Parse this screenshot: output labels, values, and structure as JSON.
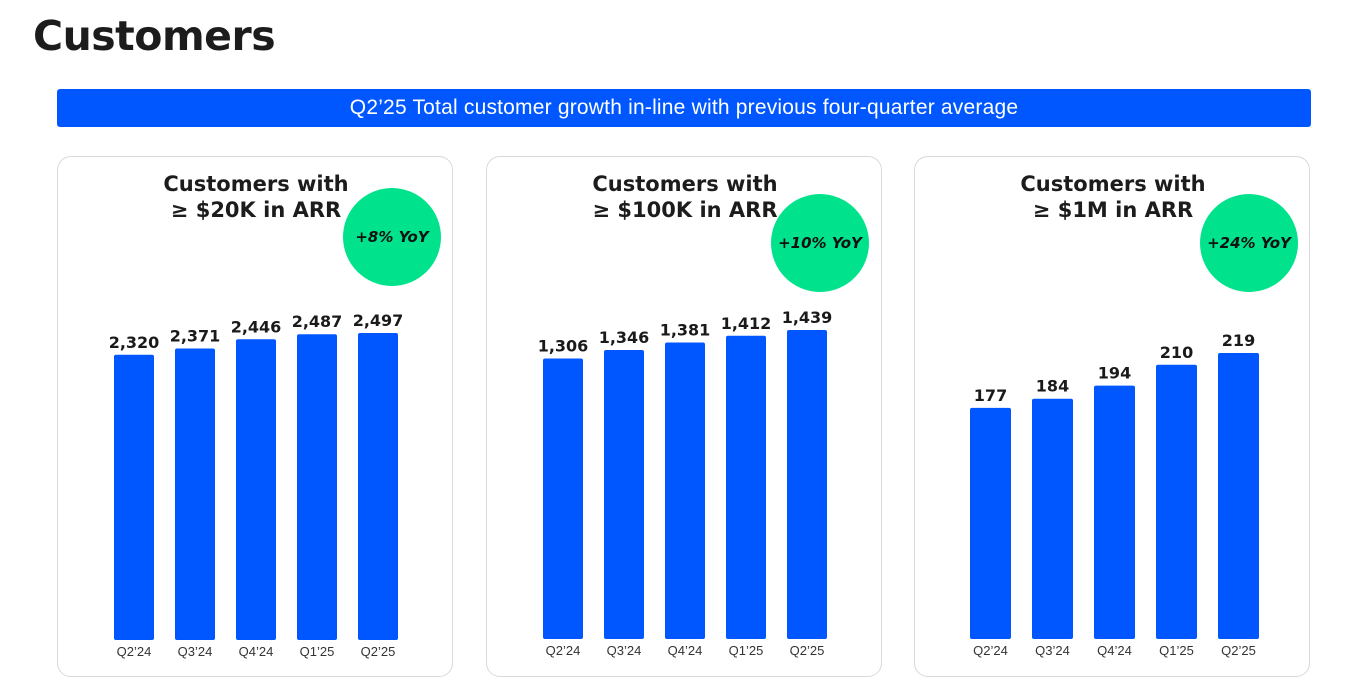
{
  "page": {
    "title": "Customers",
    "banner": "Q2’25 Total customer growth in-line with previous four-quarter average"
  },
  "colors": {
    "bar": "#0057ff",
    "banner": "#0057ff",
    "badge": "#00e38c"
  },
  "chart_data": [
    {
      "type": "bar",
      "title_line1": "Customers with",
      "title_line2": "≥ $20K in ARR",
      "badge": "+8% YoY",
      "categories": [
        "Q2’24",
        "Q3’24",
        "Q4’24",
        "Q1’25",
        "Q2’25"
      ],
      "values": [
        2320,
        2371,
        2446,
        2487,
        2497
      ],
      "value_labels": [
        "2,320",
        "2,371",
        "2,446",
        "2,487",
        "2,497"
      ]
    },
    {
      "type": "bar",
      "title_line1": "Customers with",
      "title_line2": "≥ $100K in ARR",
      "badge": "+10% YoY",
      "categories": [
        "Q2’24",
        "Q3’24",
        "Q4’24",
        "Q1’25",
        "Q2’25"
      ],
      "values": [
        1306,
        1346,
        1381,
        1412,
        1439
      ],
      "value_labels": [
        "1,306",
        "1,346",
        "1,381",
        "1,412",
        "1,439"
      ]
    },
    {
      "type": "bar",
      "title_line1": "Customers with",
      "title_line2": "≥ $1M in ARR",
      "badge": "+24% YoY",
      "categories": [
        "Q2’24",
        "Q3’24",
        "Q4’24",
        "Q1’25",
        "Q2’25"
      ],
      "values": [
        177,
        184,
        194,
        210,
        219
      ],
      "value_labels": [
        "177",
        "184",
        "194",
        "210",
        "219"
      ]
    }
  ]
}
